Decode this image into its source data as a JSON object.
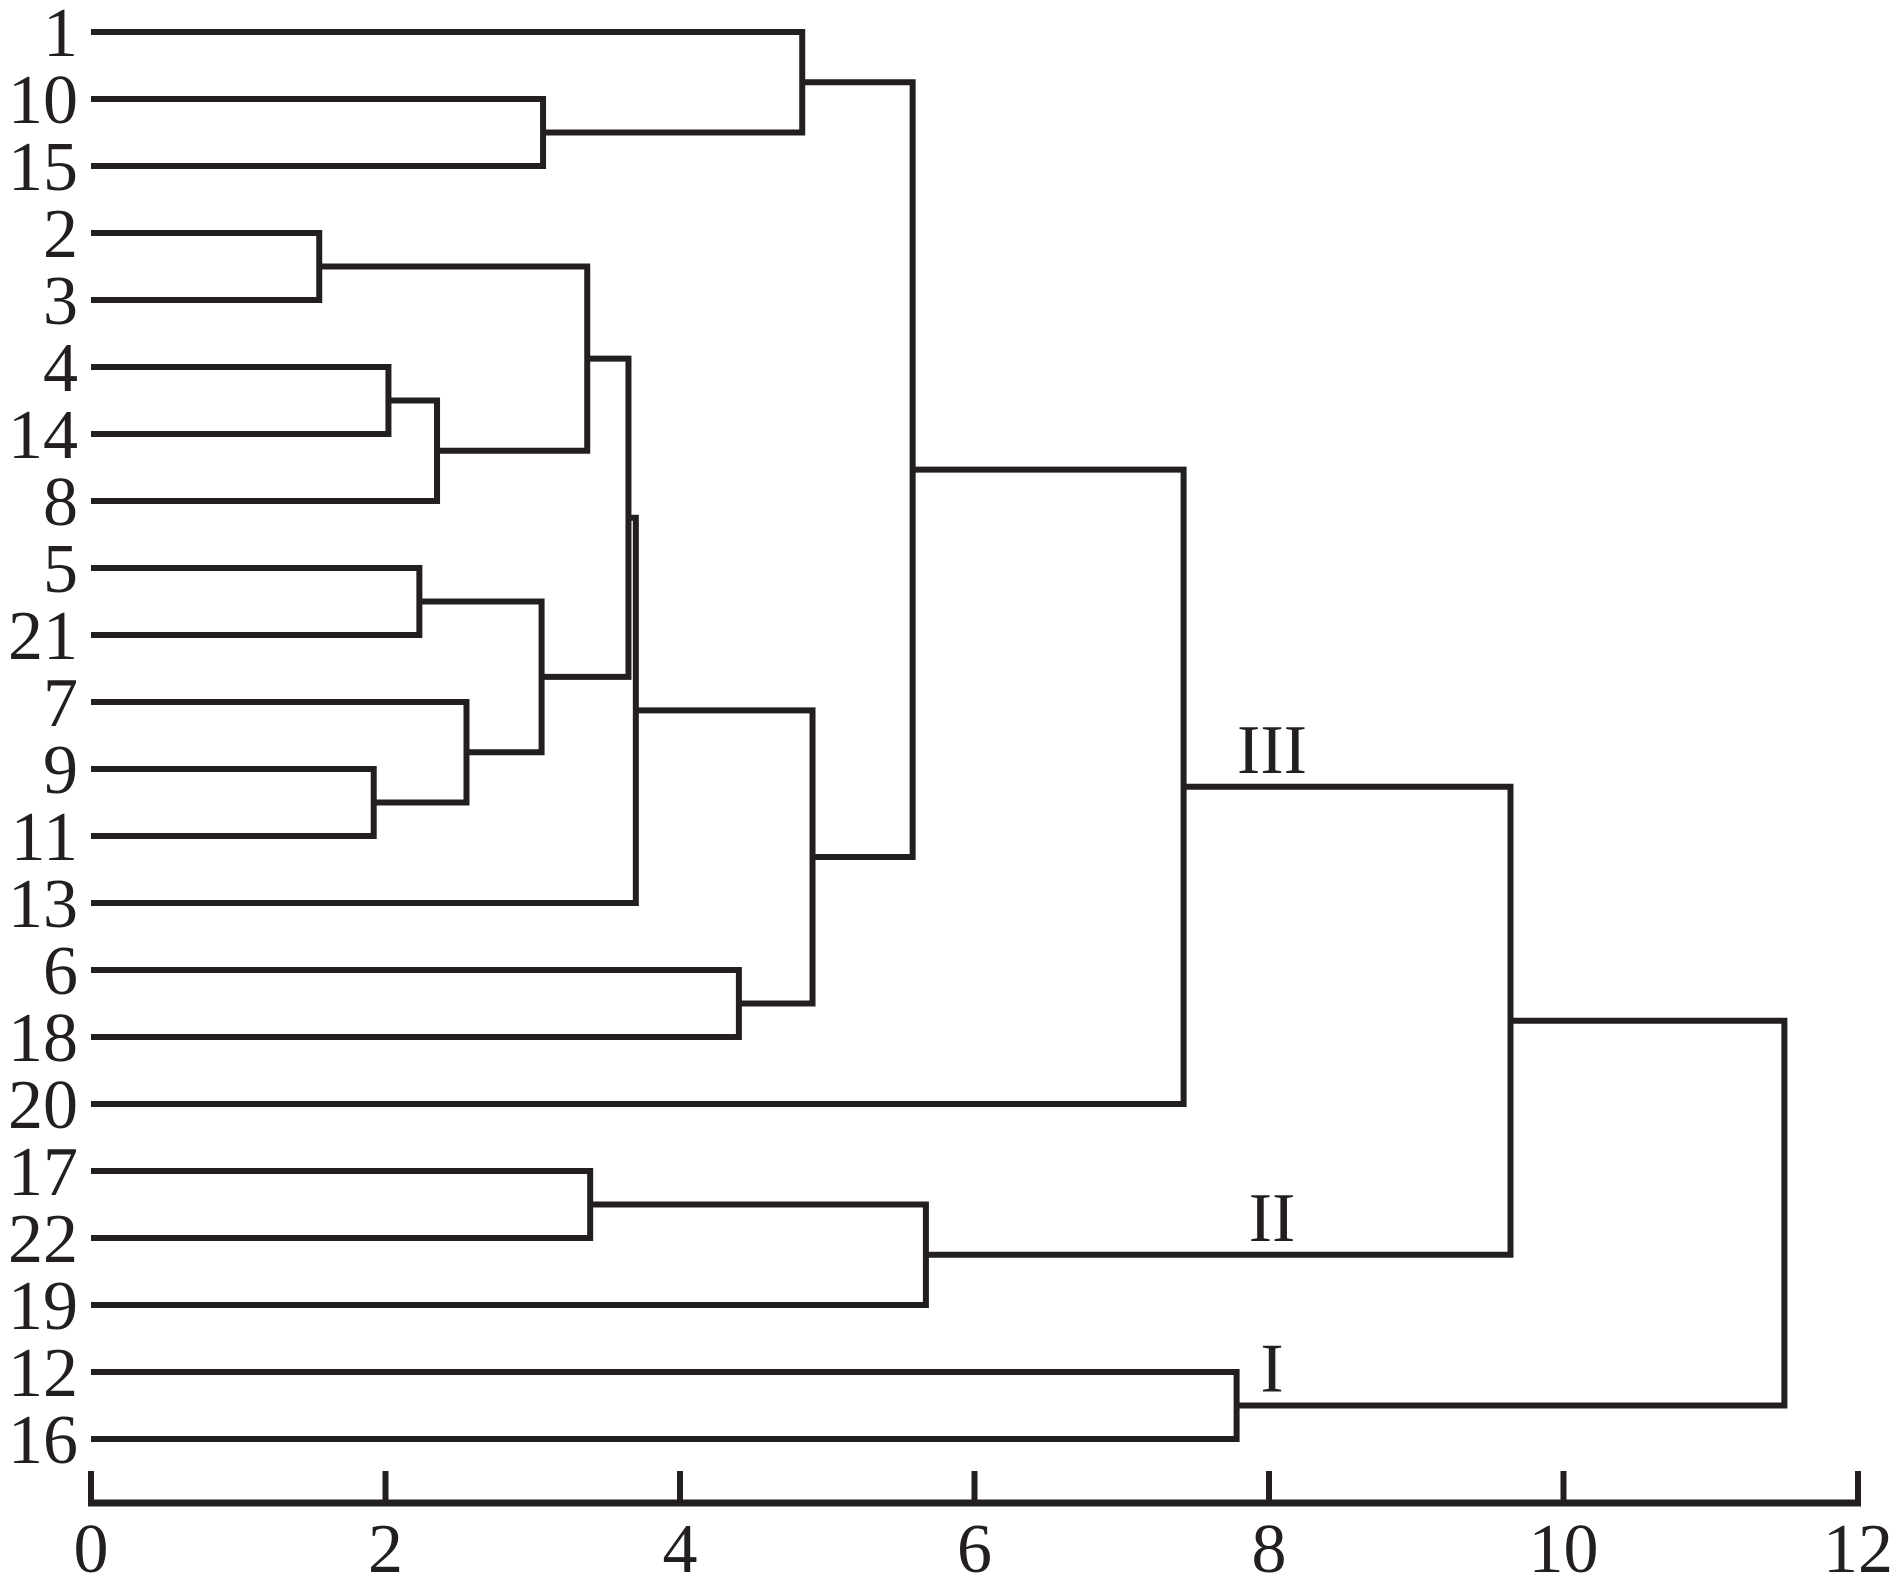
{
  "colors": {
    "line": "#231f20",
    "text": "#231f20",
    "background": "#ffffff"
  },
  "chart_data": {
    "type": "dendrogram",
    "orientation": "horizontal, leaves on left, root on right",
    "title": "",
    "xlabel": "",
    "ylabel": "",
    "grid": false,
    "leaves": [
      "1",
      "10",
      "15",
      "2",
      "3",
      "4",
      "14",
      "8",
      "5",
      "21",
      "7",
      "9",
      "11",
      "13",
      "6",
      "18",
      "20",
      "17",
      "22",
      "19",
      "12",
      "16"
    ],
    "merges": [
      {
        "id": "m1",
        "children": [
          "10",
          "15"
        ],
        "height": 3.07
      },
      {
        "id": "m2",
        "children": [
          "1",
          "m1"
        ],
        "height": 4.83
      },
      {
        "id": "m3",
        "children": [
          "2",
          "3"
        ],
        "height": 1.55
      },
      {
        "id": "m4",
        "children": [
          "4",
          "14"
        ],
        "height": 2.02
      },
      {
        "id": "m5",
        "children": [
          "m4",
          "8"
        ],
        "height": 2.35
      },
      {
        "id": "m6",
        "children": [
          "m3",
          "m5"
        ],
        "height": 3.37
      },
      {
        "id": "m7",
        "children": [
          "5",
          "21"
        ],
        "height": 2.23
      },
      {
        "id": "m8",
        "children": [
          "9",
          "11"
        ],
        "height": 1.92
      },
      {
        "id": "m9",
        "children": [
          "7",
          "m8"
        ],
        "height": 2.55
      },
      {
        "id": "m10",
        "children": [
          "m7",
          "m9"
        ],
        "height": 3.06
      },
      {
        "id": "m11",
        "children": [
          "m6",
          "m10"
        ],
        "height": 3.65
      },
      {
        "id": "m12",
        "children": [
          "m11",
          "13"
        ],
        "height": 3.7
      },
      {
        "id": "m13",
        "children": [
          "6",
          "18"
        ],
        "height": 4.4
      },
      {
        "id": "m14",
        "children": [
          "m12",
          "m13"
        ],
        "height": 4.9
      },
      {
        "id": "m15",
        "children": [
          "m2",
          "m14"
        ],
        "height": 5.58
      },
      {
        "id": "m16",
        "children": [
          "m15",
          "20"
        ],
        "height": 7.42
      },
      {
        "id": "m17",
        "children": [
          "17",
          "22"
        ],
        "height": 3.39
      },
      {
        "id": "m18",
        "children": [
          "m17",
          "19"
        ],
        "height": 5.67
      },
      {
        "id": "m19",
        "children": [
          "m16",
          "m18"
        ],
        "height": 9.64
      },
      {
        "id": "m20",
        "children": [
          "12",
          "16"
        ],
        "height": 7.78
      },
      {
        "id": "m21",
        "children": [
          "m19",
          "m20"
        ],
        "height": 11.5
      }
    ],
    "cluster_labels": [
      {
        "text": "III",
        "merge": "m16"
      },
      {
        "text": "II",
        "merge": "m18"
      },
      {
        "text": "I",
        "merge": "m20"
      }
    ],
    "xaxis": {
      "range": [
        0,
        12
      ],
      "ticks": [
        0,
        2,
        4,
        6,
        8,
        10,
        12
      ],
      "tick_labels": [
        "0",
        "2",
        "4",
        "6",
        "8",
        "10",
        "12"
      ]
    }
  }
}
